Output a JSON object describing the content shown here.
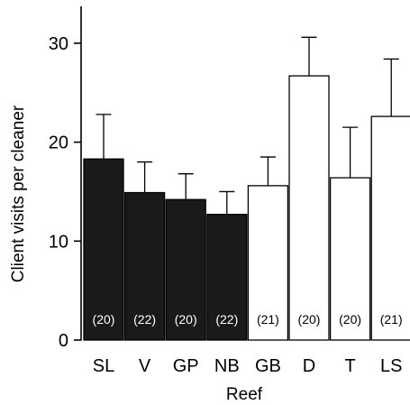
{
  "chart_data": {
    "type": "bar",
    "title": "",
    "xlabel": "Reef",
    "ylabel": "Client visits per cleaner",
    "ylim": [
      0,
      34
    ],
    "yticks": [
      0,
      10,
      20,
      30
    ],
    "grid": false,
    "categories": [
      "SL",
      "V",
      "GP",
      "NB",
      "GB",
      "D",
      "T",
      "LS"
    ],
    "values": [
      18.3,
      14.9,
      14.2,
      12.7,
      15.6,
      26.7,
      16.4,
      22.6
    ],
    "error_upper": [
      22.8,
      18.0,
      16.8,
      15.0,
      18.5,
      30.6,
      21.5,
      28.4
    ],
    "sample_size_labels": [
      "(20)",
      "(22)",
      "(20)",
      "(22)",
      "(21)",
      "(20)",
      "(20)",
      "(21)"
    ],
    "bar_fill": [
      "black",
      "black",
      "black",
      "black",
      "white",
      "white",
      "white",
      "white"
    ],
    "colors": {
      "dark": "#1a1a1a",
      "light": "#ffffff",
      "axis": "#000000"
    }
  }
}
